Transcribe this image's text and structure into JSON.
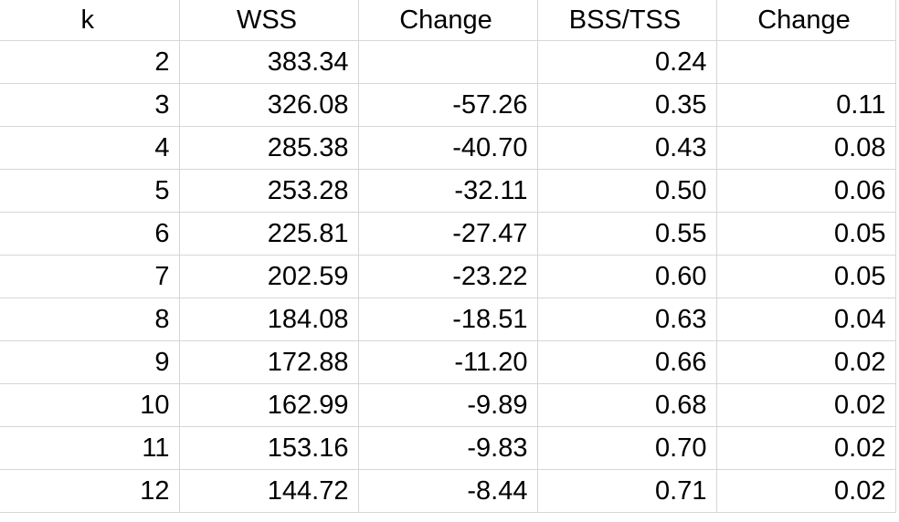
{
  "table": {
    "header": [
      "k",
      "WSS",
      "Change",
      "BSS/TSS",
      "Change"
    ],
    "rows": [
      [
        "2",
        "383.34",
        null,
        "0.24",
        null
      ],
      [
        "3",
        "326.08",
        "-57.26",
        "0.35",
        "0.11"
      ],
      [
        "4",
        "285.38",
        "-40.70",
        "0.43",
        "0.08"
      ],
      [
        "5",
        "253.28",
        "-32.11",
        "0.50",
        "0.06"
      ],
      [
        "6",
        "225.81",
        "-27.47",
        "0.55",
        "0.05"
      ],
      [
        "7",
        "202.59",
        "-23.22",
        "0.60",
        "0.05"
      ],
      [
        "8",
        "184.08",
        "-18.51",
        "0.63",
        "0.04"
      ],
      [
        "9",
        "172.88",
        "-11.20",
        "0.66",
        "0.02"
      ],
      [
        "10",
        "162.99",
        "-9.89",
        "0.68",
        "0.02"
      ],
      [
        "11",
        "153.16",
        "-9.83",
        "0.70",
        "0.02"
      ],
      [
        "12",
        "144.72",
        "-8.44",
        "0.71",
        "0.02"
      ]
    ]
  }
}
